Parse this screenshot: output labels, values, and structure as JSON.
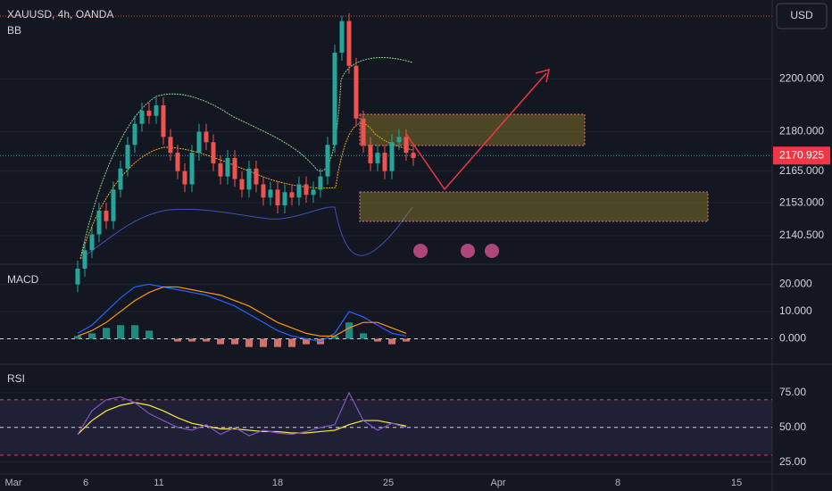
{
  "header": {
    "symbol": "XAUUSD, 4h, OANDA",
    "indicator": "BB",
    "currency": "USD"
  },
  "price": {
    "ylim": [
      2130,
      2230
    ],
    "yticks": [
      {
        "value": 2200,
        "label": "2200.000"
      },
      {
        "value": 2180,
        "label": "2180.000"
      },
      {
        "value": 2165,
        "label": "2165.000"
      },
      {
        "value": 2153,
        "label": "2153.000"
      },
      {
        "value": 2140.5,
        "label": "2140.500"
      }
    ],
    "last": {
      "value": 2170.925,
      "label": "2170.925"
    },
    "candles": [
      [
        2122,
        2131,
        2119,
        2128
      ],
      [
        2128,
        2138,
        2125,
        2135
      ],
      [
        2135,
        2144,
        2132,
        2141
      ],
      [
        2141,
        2153,
        2138,
        2150
      ],
      [
        2150,
        2153,
        2143,
        2146
      ],
      [
        2146,
        2161,
        2143,
        2158
      ],
      [
        2158,
        2169,
        2155,
        2166
      ],
      [
        2166,
        2178,
        2163,
        2175
      ],
      [
        2175,
        2186,
        2172,
        2183
      ],
      [
        2183,
        2191,
        2180,
        2188
      ],
      [
        2188,
        2191,
        2183,
        2186
      ],
      [
        2186,
        2193,
        2183,
        2190
      ],
      [
        2190,
        2193,
        2175,
        2178
      ],
      [
        2178,
        2181,
        2169,
        2172
      ],
      [
        2172,
        2175,
        2162,
        2165
      ],
      [
        2165,
        2168,
        2157,
        2160
      ],
      [
        2160,
        2175,
        2157,
        2172
      ],
      [
        2172,
        2183,
        2169,
        2180
      ],
      [
        2180,
        2183,
        2173,
        2176
      ],
      [
        2176,
        2179,
        2165,
        2168
      ],
      [
        2168,
        2171,
        2160,
        2163
      ],
      [
        2163,
        2173,
        2160,
        2170
      ],
      [
        2170,
        2173,
        2159,
        2162
      ],
      [
        2162,
        2165,
        2155,
        2158
      ],
      [
        2158,
        2169,
        2155,
        2166
      ],
      [
        2166,
        2169,
        2157,
        2160
      ],
      [
        2160,
        2163,
        2152,
        2155
      ],
      [
        2155,
        2161,
        2152,
        2158
      ],
      [
        2158,
        2161,
        2149,
        2152
      ],
      [
        2152,
        2160,
        2149,
        2157
      ],
      [
        2157,
        2160,
        2152,
        2155
      ],
      [
        2155,
        2163,
        2152,
        2160
      ],
      [
        2160,
        2163,
        2153,
        2156
      ],
      [
        2156,
        2161,
        2153,
        2158
      ],
      [
        2158,
        2166,
        2155,
        2163
      ],
      [
        2163,
        2178,
        2160,
        2175
      ],
      [
        2175,
        2213,
        2172,
        2210
      ],
      [
        2210,
        2224,
        2207,
        2222
      ],
      [
        2222,
        2225,
        2202,
        2205
      ],
      [
        2205,
        2208,
        2182,
        2185
      ],
      [
        2185,
        2188,
        2172,
        2175
      ],
      [
        2175,
        2178,
        2165,
        2168
      ],
      [
        2168,
        2175,
        2165,
        2172
      ],
      [
        2172,
        2175,
        2162,
        2165
      ],
      [
        2165,
        2179,
        2162,
        2176
      ],
      [
        2176,
        2181,
        2173,
        2178
      ],
      [
        2178,
        2181,
        2169,
        2172
      ],
      [
        2172,
        2175,
        2167,
        2170
      ]
    ]
  },
  "macd": {
    "title": "MACD",
    "ylim": [
      -9,
      27
    ],
    "yticks": [
      {
        "value": 20,
        "label": "20.000"
      },
      {
        "value": 10,
        "label": "10.000"
      },
      {
        "value": 0,
        "label": "0.000"
      }
    ],
    "macd": [
      2,
      5,
      10,
      15,
      19,
      20,
      19,
      18,
      17,
      16,
      14,
      12,
      9,
      6,
      3,
      1,
      0,
      -1,
      2,
      10,
      8,
      5,
      2,
      1
    ],
    "signal": [
      1,
      3,
      6,
      10,
      14,
      17,
      19,
      19,
      18,
      17,
      16,
      14,
      12,
      9,
      6,
      4,
      2,
      1,
      1,
      4,
      6,
      6,
      4,
      2
    ],
    "histogram": [
      1,
      2,
      4,
      5,
      5,
      3,
      0,
      -1,
      -1,
      -1,
      -2,
      -2,
      -3,
      -3,
      -3,
      -3,
      -2,
      -2,
      1,
      6,
      2,
      -1,
      -2,
      -1
    ]
  },
  "rsi": {
    "title": "RSI",
    "ylim": [
      17,
      95
    ],
    "yticks": [
      {
        "value": 75,
        "label": "75.00"
      },
      {
        "value": 50,
        "label": "50.00"
      },
      {
        "value": 25,
        "label": "25.00"
      }
    ],
    "levels": [
      70,
      50,
      30
    ],
    "rsi": [
      45,
      62,
      70,
      72,
      68,
      60,
      55,
      50,
      48,
      52,
      45,
      50,
      44,
      48,
      46,
      45,
      47,
      50,
      52,
      75,
      55,
      48,
      53,
      50
    ],
    "signal": [
      45,
      55,
      62,
      66,
      68,
      66,
      62,
      57,
      53,
      51,
      49,
      49,
      48,
      47,
      47,
      46,
      46,
      47,
      48,
      52,
      55,
      55,
      53,
      51
    ]
  },
  "x_labels": [
    "Mar",
    "6",
    "11",
    "18",
    "25",
    "Apr",
    "8",
    "15"
  ]
}
